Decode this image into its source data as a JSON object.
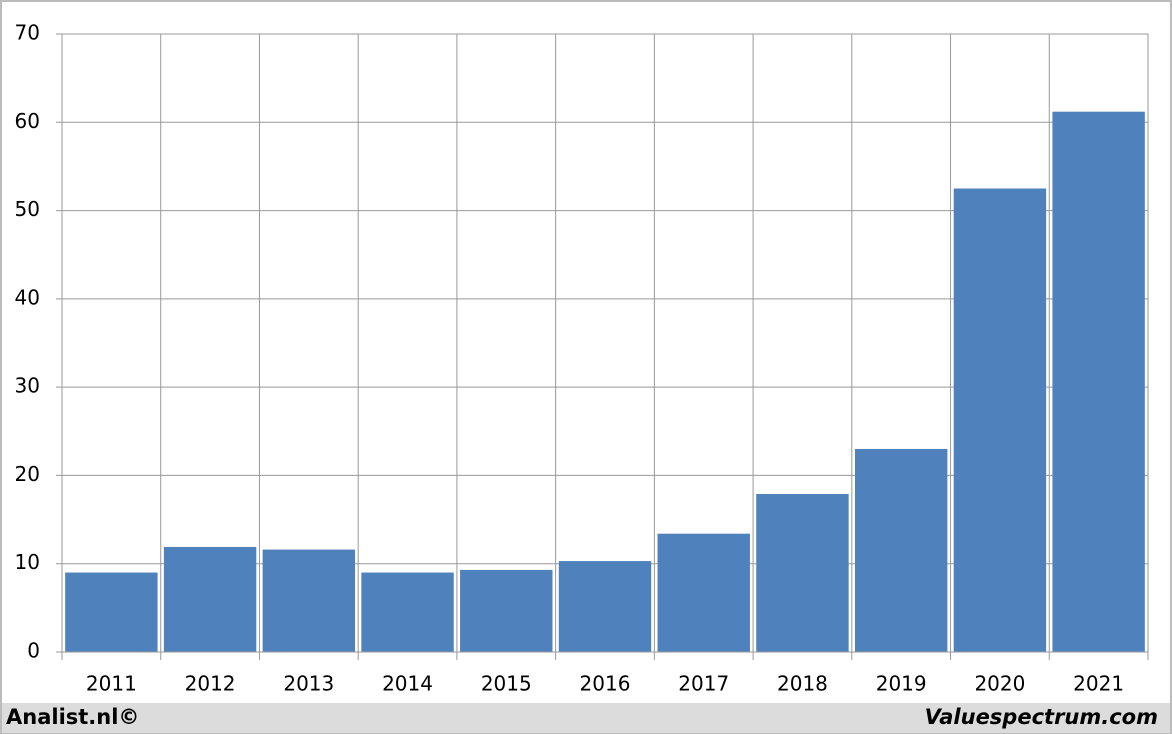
{
  "chart_data": {
    "type": "bar",
    "categories": [
      "2011",
      "2012",
      "2013",
      "2014",
      "2015",
      "2016",
      "2017",
      "2018",
      "2019",
      "2020",
      "2021"
    ],
    "values": [
      9.0,
      11.9,
      11.6,
      9.0,
      9.3,
      10.3,
      13.4,
      17.9,
      23.0,
      52.5,
      61.2
    ],
    "color": "#4f81bd",
    "ylim": [
      0,
      70
    ],
    "yticks": [
      0,
      10,
      20,
      30,
      40,
      50,
      60,
      70
    ],
    "grid": true
  },
  "footer": {
    "left": "Analist.nl©",
    "right": "Valuespectrum.com"
  }
}
